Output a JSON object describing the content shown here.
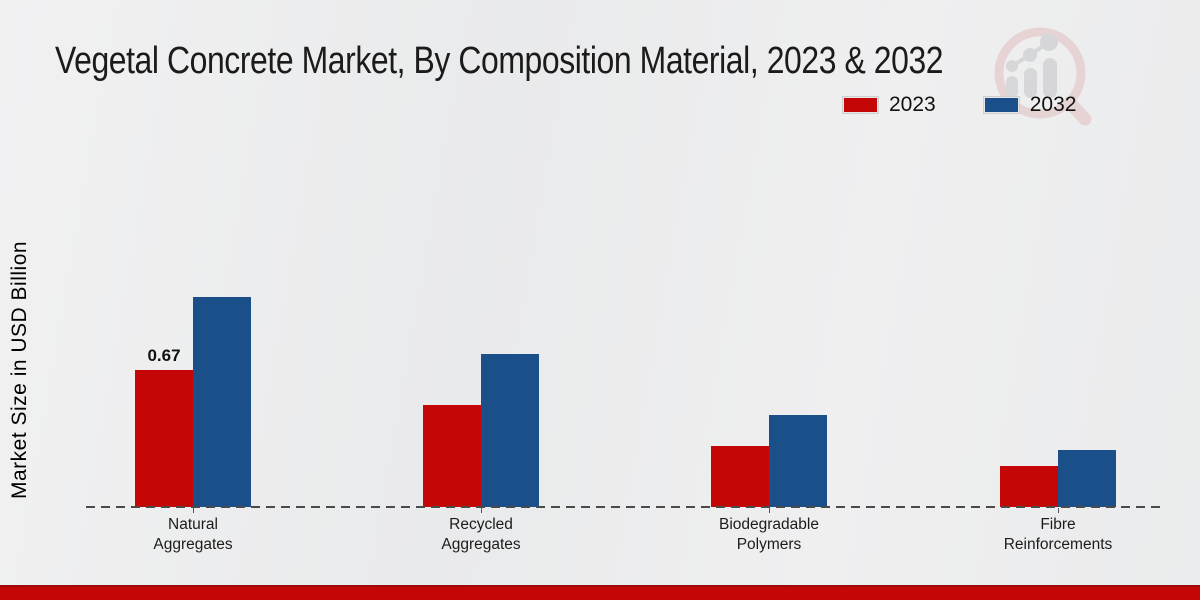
{
  "title": "Vegetal Concrete Market, By Composition Material, 2023 & 2032",
  "y_axis_label": "Market Size in USD Billion",
  "legend": {
    "position": "top-right",
    "items": [
      {
        "label": "2023",
        "color": "#c40606"
      },
      {
        "label": "2032",
        "color": "#1b4f8a"
      }
    ]
  },
  "chart_data": {
    "type": "bar",
    "categories": [
      "Natural Aggregates",
      "Recycled Aggregates",
      "Biodegradable Polymers",
      "Fibre Reinforcements"
    ],
    "series": [
      {
        "name": "2023",
        "color": "#c40606",
        "values": [
          0.67,
          0.5,
          0.3,
          0.2
        ]
      },
      {
        "name": "2032",
        "color": "#1b4f8a",
        "values": [
          1.03,
          0.75,
          0.45,
          0.28
        ]
      }
    ],
    "annotations": [
      {
        "series": "2023",
        "category": "Natural Aggregates",
        "text": "0.67"
      }
    ],
    "title": "Vegetal Concrete Market, By Composition Material, 2023 & 2032",
    "xlabel": "",
    "ylabel": "Market Size in USD Billion",
    "ylim": [
      0,
      1.1
    ],
    "grid": false,
    "legend_position": "top-right",
    "baseline_style": "dashed"
  },
  "branding": {
    "watermark_icon": "magnifier-growth-chart-logo",
    "footer_bar_color": "#c40606"
  }
}
